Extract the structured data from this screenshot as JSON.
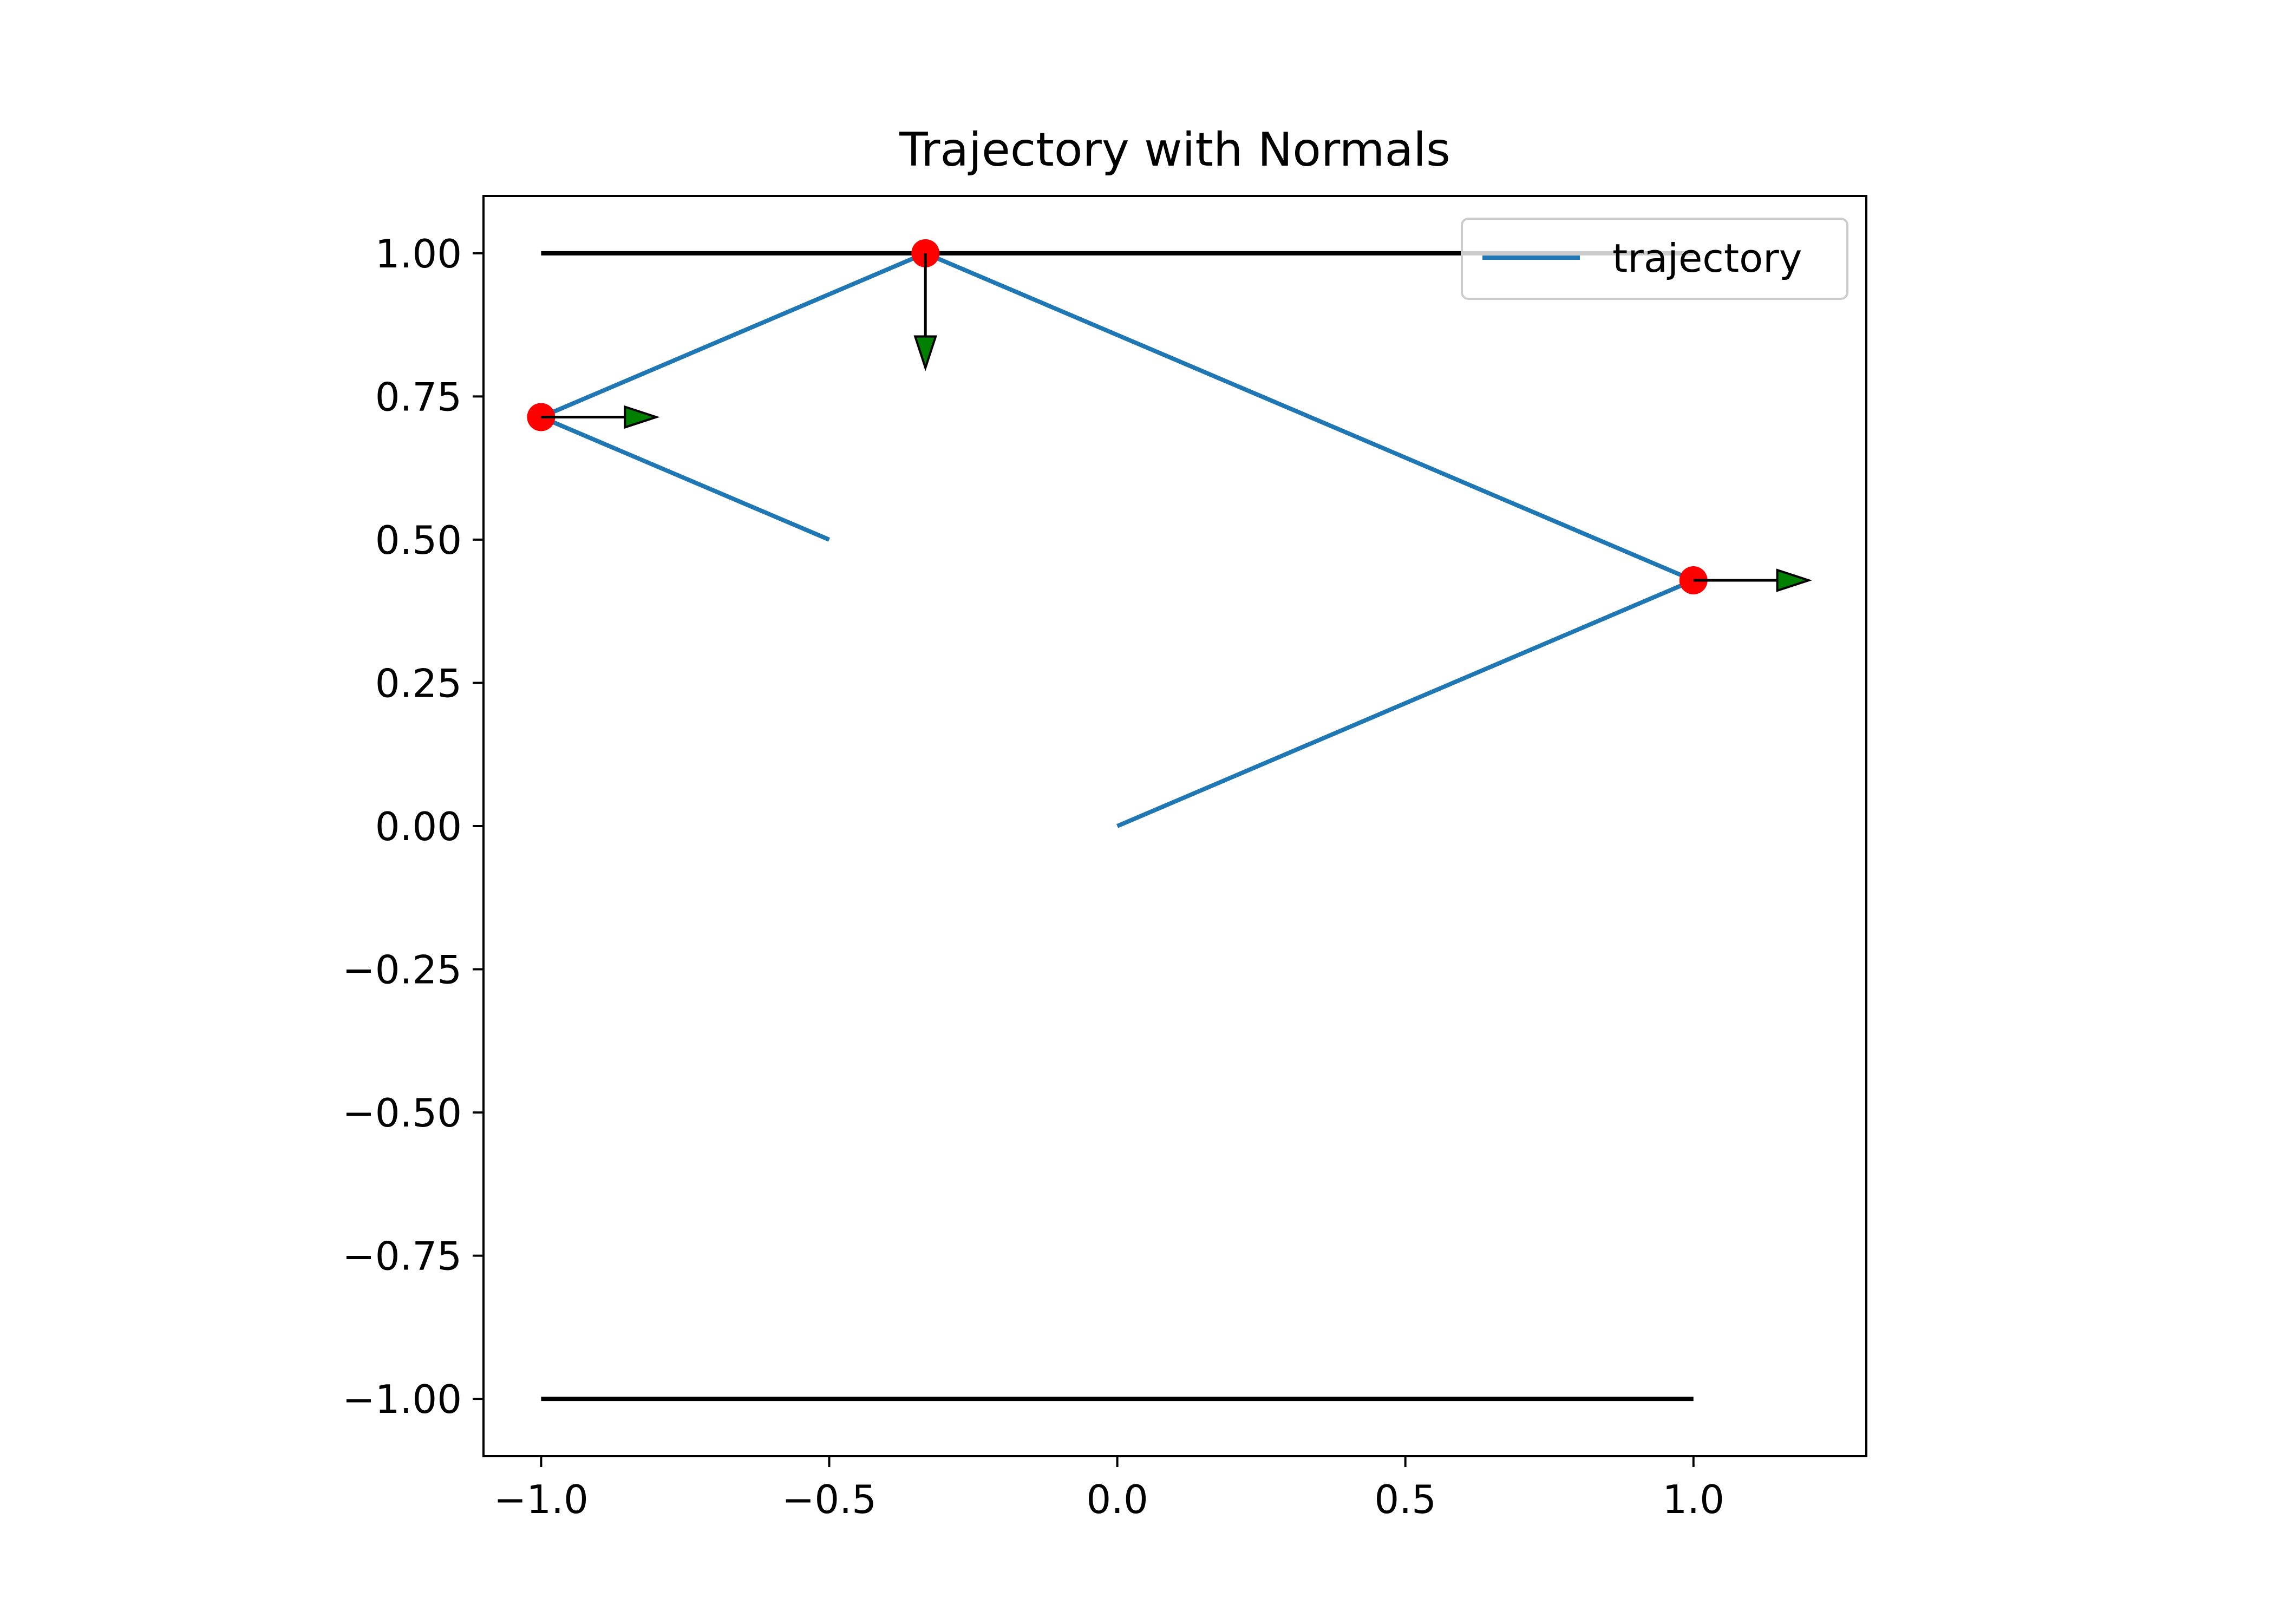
{
  "chart_data": {
    "type": "line",
    "title": "Trajectory with Normals",
    "xlabel": "",
    "ylabel": "",
    "xlim": [
      -1.1,
      1.3
    ],
    "ylim": [
      -1.1,
      1.1
    ],
    "grid": false,
    "legend_position": "top-right",
    "x_ticks": [
      {
        "value": -1.0,
        "label": "−1.0"
      },
      {
        "value": -0.5,
        "label": "−0.5"
      },
      {
        "value": 0.0,
        "label": "0.0"
      },
      {
        "value": 0.5,
        "label": "0.5"
      },
      {
        "value": 1.0,
        "label": "1.0"
      }
    ],
    "y_ticks": [
      {
        "value": 1.0,
        "label": "1.00"
      },
      {
        "value": 0.75,
        "label": "0.75"
      },
      {
        "value": 0.5,
        "label": "0.50"
      },
      {
        "value": 0.25,
        "label": "0.25"
      },
      {
        "value": 0.0,
        "label": "0.00"
      },
      {
        "value": -0.25,
        "label": "−0.25"
      },
      {
        "value": -0.5,
        "label": "−0.50"
      },
      {
        "value": -0.75,
        "label": "−0.75"
      },
      {
        "value": -1.0,
        "label": "−1.00"
      }
    ],
    "walls": [
      {
        "x": [
          -1.0,
          1.0
        ],
        "y": [
          1.0,
          1.0
        ],
        "color": "#000000"
      },
      {
        "x": [
          -1.0,
          1.0
        ],
        "y": [
          -1.0,
          -1.0
        ],
        "color": "#000000"
      }
    ],
    "series": [
      {
        "name": "trajectory",
        "color": "#1f77b4",
        "x": [
          0.0,
          1.0,
          -0.333,
          -1.0,
          -0.5
        ],
        "y": [
          0.0,
          0.429,
          1.0,
          0.714,
          0.5
        ]
      }
    ],
    "collision_points": {
      "color": "#ff0000",
      "x": [
        1.0,
        -0.333,
        -1.0
      ],
      "y": [
        0.429,
        1.0,
        0.714
      ]
    },
    "normals": {
      "color": "#008000",
      "edge_color": "#000000",
      "vectors": [
        {
          "x": 1.0,
          "y": 0.429,
          "dx": 0.2,
          "dy": 0.0
        },
        {
          "x": -0.333,
          "y": 1.0,
          "dx": 0.0,
          "dy": -0.2
        },
        {
          "x": -1.0,
          "y": 0.714,
          "dx": 0.2,
          "dy": 0.0
        }
      ]
    }
  }
}
